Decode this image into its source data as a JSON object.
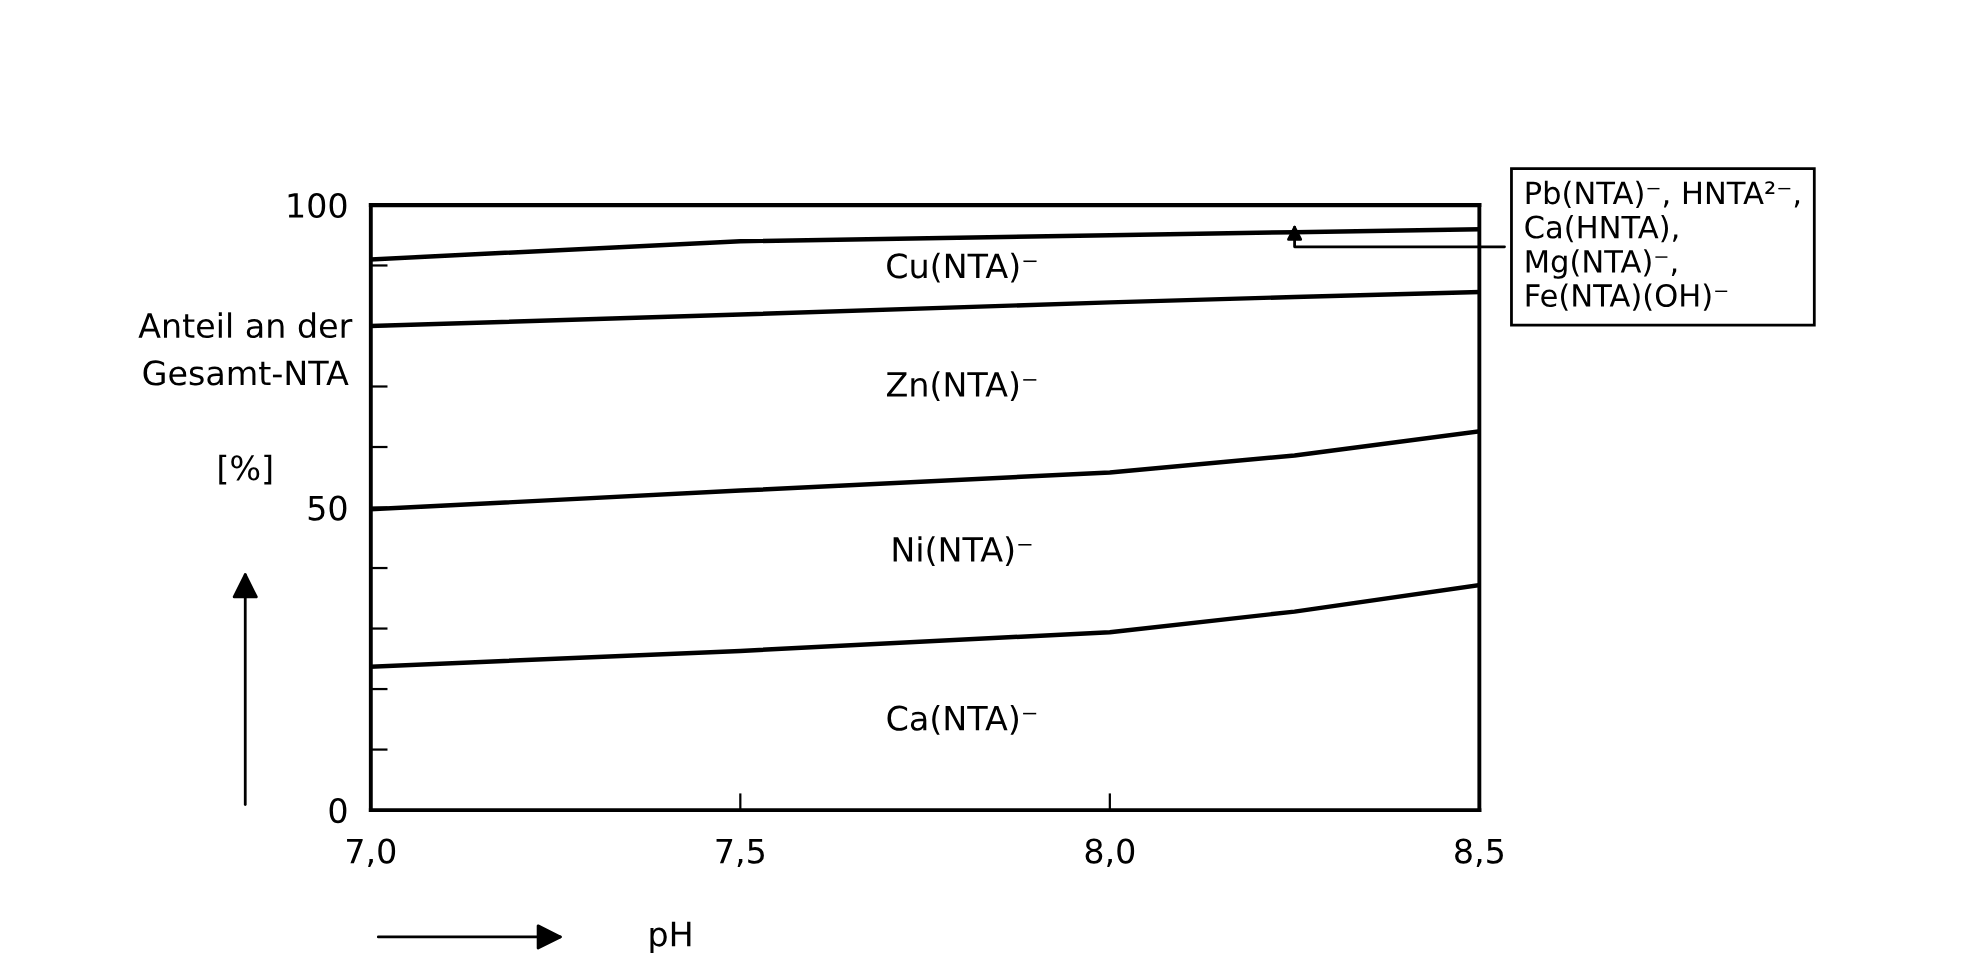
{
  "chart_data": {
    "type": "area",
    "stacked": true,
    "xlabel": "pH",
    "ylabel": "Anteil an der\nGesamt-NTA\n\n[%]",
    "x": [
      7.0,
      7.5,
      8.0,
      8.25,
      8.5
    ],
    "series": [
      {
        "name": "Ca(NTA)⁻",
        "color": "#000000",
        "values": [
          23.7,
          26.3,
          29.4,
          32.8,
          37.2
        ]
      },
      {
        "name": "Ni(NTA)⁻",
        "color": "#000000",
        "values": [
          26.0,
          26.5,
          26.4,
          25.8,
          25.4
        ]
      },
      {
        "name": "Zn(NTA)⁻",
        "color": "#000000",
        "values": [
          30.3,
          29.1,
          28.1,
          26.2,
          23.0
        ]
      },
      {
        "name": "Cu(NTA)⁻",
        "color": "#000000",
        "values": [
          11.0,
          12.1,
          11.1,
          10.7,
          10.4
        ]
      },
      {
        "name": "Pb(NTA)⁻, HNTA²⁻,\nCa(HNTA),\nMg(NTA)⁻,\nFe(NTA)(OH)⁻",
        "color": "#000000",
        "values": [
          9.0,
          6.0,
          5.0,
          4.5,
          4.0
        ]
      }
    ],
    "xlim": [
      7.0,
      8.5
    ],
    "xticks": [
      {
        "value": 7.0,
        "label": "7,0"
      },
      {
        "value": 7.5,
        "label": "7,5"
      },
      {
        "value": 8.0,
        "label": "8,0"
      },
      {
        "value": 8.5,
        "label": "8,5"
      }
    ],
    "ylim": [
      0,
      100
    ],
    "yticks": [
      0,
      {
        "value": 10,
        "label": null
      },
      {
        "value": 20,
        "label": null
      },
      {
        "value": 30,
        "label": null
      },
      {
        "value": 40,
        "label": null
      },
      50,
      {
        "value": 60,
        "label": null
      },
      {
        "value": 70,
        "label": null
      },
      {
        "value": 80,
        "label": null
      },
      {
        "value": 90,
        "label": null
      },
      100
    ],
    "grid": false,
    "legend": false
  }
}
